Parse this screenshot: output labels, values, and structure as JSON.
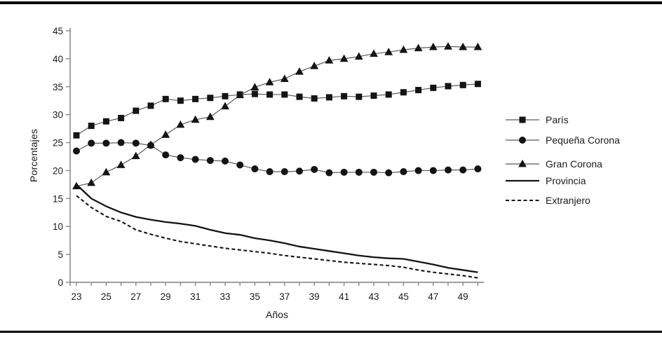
{
  "figure": {
    "xlabel": "Años",
    "ylabel": "Porcentajes"
  },
  "chart_data": {
    "type": "line",
    "title": "",
    "xlabel": "Años",
    "ylabel": "Porcentajes",
    "x": [
      23,
      24,
      25,
      26,
      27,
      28,
      29,
      30,
      31,
      32,
      33,
      34,
      35,
      36,
      37,
      38,
      39,
      40,
      41,
      42,
      43,
      44,
      45,
      46,
      47,
      48,
      49,
      50
    ],
    "x_tick_labels": [
      23,
      25,
      27,
      29,
      31,
      33,
      35,
      37,
      39,
      41,
      43,
      45,
      47,
      49
    ],
    "xlim": [
      23,
      50
    ],
    "ylim": [
      0,
      45
    ],
    "y_ticks": [
      0,
      5,
      10,
      15,
      20,
      25,
      30,
      35,
      40,
      45
    ],
    "grid": false,
    "legend_position": "right",
    "colors": {
      "foreground": "#141414",
      "connector": "#595959",
      "axis": "#7f7f7f",
      "text": "#1a1a1a"
    },
    "series": [
      {
        "name": "París",
        "marker": "square",
        "line": "thin",
        "values": [
          26.3,
          28.0,
          28.8,
          29.4,
          30.7,
          31.6,
          32.8,
          32.5,
          32.8,
          33.0,
          33.3,
          33.6,
          33.7,
          33.6,
          33.6,
          33.2,
          32.9,
          33.1,
          33.3,
          33.2,
          33.4,
          33.6,
          34.0,
          34.4,
          34.8,
          35.1,
          35.3,
          35.5
        ]
      },
      {
        "name": "Pequeña Corona",
        "marker": "circle",
        "line": "thin",
        "values": [
          23.5,
          24.9,
          24.9,
          25.0,
          24.9,
          24.5,
          22.8,
          22.3,
          22.0,
          21.8,
          21.7,
          21.0,
          20.3,
          19.8,
          19.8,
          19.9,
          20.2,
          19.6,
          19.7,
          19.7,
          19.7,
          19.6,
          19.8,
          20.0,
          20.0,
          20.1,
          20.1,
          20.3
        ]
      },
      {
        "name": "Gran Corona",
        "marker": "triangle",
        "line": "thin",
        "values": [
          17.2,
          17.8,
          19.7,
          21.0,
          22.6,
          24.6,
          26.4,
          28.2,
          29.1,
          29.6,
          31.5,
          33.5,
          34.9,
          35.8,
          36.4,
          37.7,
          38.7,
          39.7,
          40.0,
          40.4,
          40.9,
          41.2,
          41.6,
          41.9,
          42.1,
          42.2,
          42.1,
          42.1
        ]
      },
      {
        "name": "Provincia",
        "marker": "none",
        "line": "solid",
        "values": [
          17.5,
          15.0,
          13.6,
          12.5,
          11.7,
          11.2,
          10.8,
          10.5,
          10.1,
          9.4,
          8.8,
          8.5,
          7.9,
          7.5,
          7.0,
          6.4,
          6.0,
          5.6,
          5.2,
          4.8,
          4.5,
          4.3,
          4.2,
          3.7,
          3.2,
          2.6,
          2.2,
          1.8
        ]
      },
      {
        "name": "Extranjero",
        "marker": "none",
        "line": "dashed",
        "values": [
          15.5,
          13.4,
          11.8,
          10.9,
          9.4,
          8.6,
          7.9,
          7.3,
          6.9,
          6.5,
          6.1,
          5.8,
          5.5,
          5.2,
          4.8,
          4.5,
          4.2,
          3.9,
          3.6,
          3.4,
          3.2,
          3.0,
          2.7,
          2.2,
          1.8,
          1.5,
          1.2,
          0.8
        ]
      }
    ]
  }
}
